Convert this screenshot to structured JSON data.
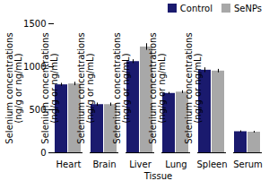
{
  "chart_data": {
    "type": "bar",
    "categories": [
      "Heart",
      "Brain",
      "Liver",
      "Lung",
      "Spleen",
      "Serum"
    ],
    "series": [
      {
        "name": "Control",
        "color": "#1a1a6e",
        "values": [
          790,
          560,
          1060,
          690,
          960,
          245
        ],
        "errors": [
          18,
          18,
          22,
          12,
          28,
          10
        ]
      },
      {
        "name": "SeNPs",
        "color": "#a8a8a8",
        "values": [
          800,
          560,
          1230,
          705,
          950,
          240
        ],
        "errors": [
          20,
          18,
          38,
          16,
          20,
          10
        ]
      }
    ],
    "xlabel": "Tissue",
    "ylabel": "Selenium concentrations\n(ng/g or ng/mL)",
    "ylim": [
      0,
      1500
    ],
    "yticks": [
      0,
      500,
      1000,
      1500
    ],
    "grid": false,
    "legend": "upper right"
  }
}
